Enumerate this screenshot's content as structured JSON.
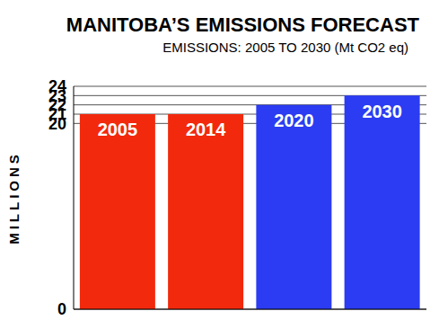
{
  "chart_data": {
    "type": "bar",
    "title": "MANITOBA’S EMISSIONS FORECAST",
    "subtitle": "EMISSIONS: 2005 TO 2030 (Mt CO2 eq)",
    "y_label": "MILLIONS",
    "categories": [
      "2005",
      "2014",
      "2020",
      "2030"
    ],
    "values": [
      21,
      21,
      22,
      23
    ],
    "colors": [
      "#f2290d",
      "#f2290d",
      "#2b3cf2",
      "#2b3cf2"
    ],
    "ylim": [
      0,
      24
    ],
    "yticks": [
      0,
      20,
      21,
      22,
      23,
      24
    ],
    "grid": true,
    "tick_labels": "y"
  }
}
